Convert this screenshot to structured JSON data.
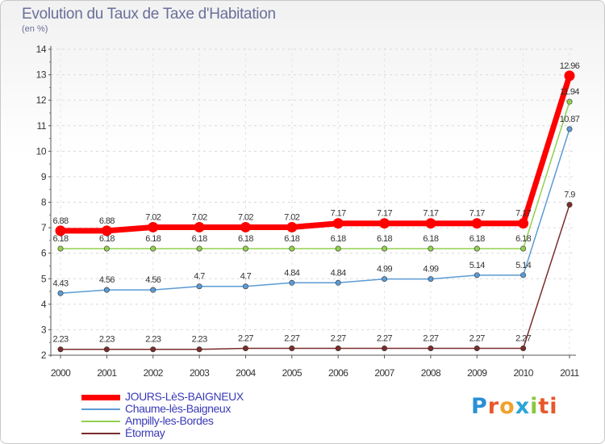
{
  "header": {
    "title": "Evolution du Taux de Taxe d'Habitation",
    "subtitle": "(en %)"
  },
  "logo": {
    "text": "Proxiti",
    "letters": [
      "P",
      "r",
      "o",
      "x",
      "i",
      "ti"
    ]
  },
  "chart_data": {
    "type": "line",
    "title": "Evolution du Taux de Taxe d'Habitation",
    "subtitle": "(en %)",
    "categories": [
      "2000",
      "2001",
      "2002",
      "2003",
      "2004",
      "2005",
      "2006",
      "2007",
      "2008",
      "2009",
      "2010",
      "2011"
    ],
    "ylim": [
      2,
      14
    ],
    "yticks": [
      2,
      3,
      4,
      5,
      6,
      7,
      8,
      9,
      10,
      11,
      12,
      13,
      14
    ],
    "legend_position": "bottom-left",
    "series": [
      {
        "name": "JOURS-LèS-BAIGNEUX",
        "color": "#ff0000",
        "values": [
          6.88,
          6.88,
          7.02,
          7.02,
          7.02,
          7.02,
          7.17,
          7.17,
          7.17,
          7.17,
          7.17,
          12.96
        ],
        "labels": [
          "6.88",
          "6.88",
          "7.02",
          "7.02",
          "7.02",
          "7.02",
          "7.17",
          "7.17",
          "7.17",
          "7.17",
          "7.17",
          "12.96"
        ]
      },
      {
        "name": "Chaume-lès-Baigneux",
        "color": "#5b9bd5",
        "values": [
          4.43,
          4.56,
          4.56,
          4.7,
          4.7,
          4.84,
          4.84,
          4.99,
          4.99,
          5.14,
          5.14,
          10.87
        ],
        "labels": [
          "4.43",
          "4.56",
          "4.56",
          "4.7",
          "4.7",
          "4.84",
          "4.84",
          "4.99",
          "4.99",
          "5.14",
          "5.14",
          "10.87"
        ]
      },
      {
        "name": "Ampilly-les-Bordes",
        "color": "#92d050",
        "values": [
          6.18,
          6.18,
          6.18,
          6.18,
          6.18,
          6.18,
          6.18,
          6.18,
          6.18,
          6.18,
          6.18,
          11.94
        ],
        "labels": [
          "6.18",
          "6.18",
          "6.18",
          "6.18",
          "6.18",
          "6.18",
          "6.18",
          "6.18",
          "6.18",
          "6.18",
          "6.18",
          "11.94"
        ]
      },
      {
        "name": "Étormay",
        "color": "#7b2c2c",
        "values": [
          2.23,
          2.23,
          2.23,
          2.23,
          2.27,
          2.27,
          2.27,
          2.27,
          2.27,
          2.27,
          2.27,
          7.9
        ],
        "labels": [
          "2.23",
          "2.23",
          "2.23",
          "2.23",
          "2.27",
          "2.27",
          "2.27",
          "2.27",
          "2.27",
          "2.27",
          "2.27",
          "7.9"
        ]
      }
    ]
  }
}
